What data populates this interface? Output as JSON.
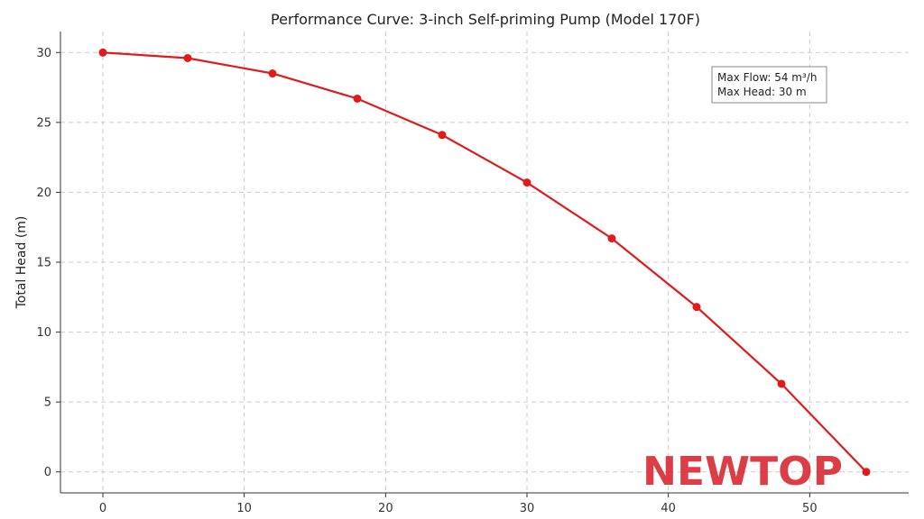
{
  "chart_data": {
    "type": "line",
    "title": "Performance Curve: 3-inch Self-priming Pump (Model 170F)",
    "xlabel": "",
    "ylabel": "Total Head (m)",
    "x": [
      0,
      6,
      12,
      18,
      24,
      30,
      36,
      42,
      48,
      54
    ],
    "series": [
      {
        "values": [
          30.0,
          29.6,
          28.5,
          26.7,
          24.1,
          20.7,
          16.7,
          11.8,
          6.3,
          0.0
        ],
        "color": "#e01b1b"
      }
    ],
    "xlim": [
      -3,
      57
    ],
    "ylim": [
      -1.5,
      31.5
    ],
    "xticks": [
      0,
      10,
      20,
      30,
      40,
      50
    ],
    "yticks": [
      0,
      5,
      10,
      15,
      20,
      25,
      30
    ],
    "grid": true,
    "annotation": {
      "lines": [
        "Max Flow: 54 m³/h",
        "Max Head: 30 m"
      ],
      "placement": "top-right"
    },
    "logo": {
      "text": "NEWTOP",
      "color": "#d8242f"
    }
  }
}
